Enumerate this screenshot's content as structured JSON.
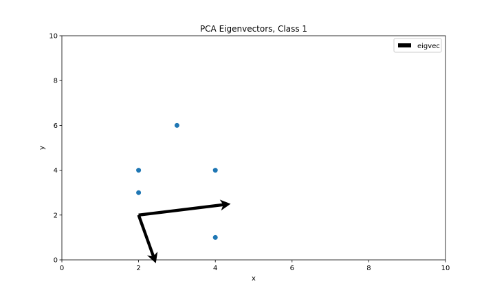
{
  "chart_data": {
    "type": "scatter",
    "title": "PCA Eigenvectors, Class 1",
    "xlabel": "x",
    "ylabel": "y",
    "xlim": [
      0,
      10
    ],
    "ylim": [
      0,
      10
    ],
    "xticks": [
      0,
      2,
      4,
      6,
      8,
      10
    ],
    "yticks": [
      0,
      2,
      4,
      6,
      8,
      10
    ],
    "grid": false,
    "legend": {
      "placement": "top-right",
      "entries": [
        {
          "label": "eigvec",
          "marker": "arrow",
          "color": "#000000"
        }
      ]
    },
    "points": {
      "color": "#1f77b4",
      "x": [
        2,
        2,
        3,
        4,
        4
      ],
      "y": [
        3,
        4,
        6,
        4,
        1
      ]
    },
    "vectors": {
      "label": "eigvec",
      "color": "#000000",
      "origin": [
        2,
        2
      ],
      "items": [
        {
          "dx": 2.4,
          "dy": 0.5
        },
        {
          "dx": 0.45,
          "dy": -2.15
        }
      ]
    }
  }
}
